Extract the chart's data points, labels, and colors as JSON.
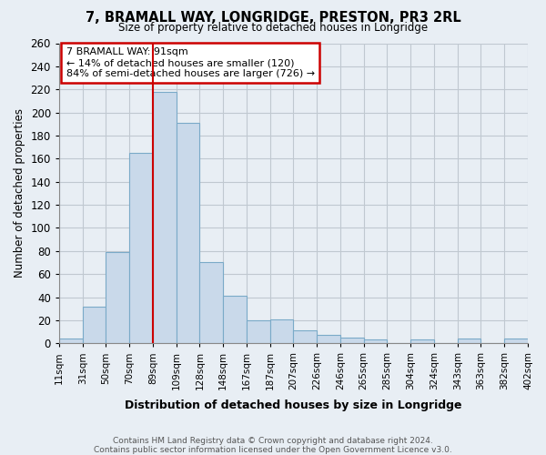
{
  "title": "7, BRAMALL WAY, LONGRIDGE, PRESTON, PR3 2RL",
  "subtitle": "Size of property relative to detached houses in Longridge",
  "xlabel": "Distribution of detached houses by size in Longridge",
  "ylabel": "Number of detached properties",
  "bin_labels": [
    "11sqm",
    "31sqm",
    "50sqm",
    "70sqm",
    "89sqm",
    "109sqm",
    "128sqm",
    "148sqm",
    "167sqm",
    "187sqm",
    "207sqm",
    "226sqm",
    "246sqm",
    "265sqm",
    "285sqm",
    "304sqm",
    "324sqm",
    "343sqm",
    "363sqm",
    "382sqm",
    "402sqm"
  ],
  "bin_values": [
    4,
    32,
    79,
    165,
    218,
    191,
    70,
    41,
    20,
    21,
    11,
    7,
    5,
    3,
    0,
    3,
    0,
    4,
    0,
    4
  ],
  "bar_color": "#c9d9ea",
  "bar_edge_color": "#7aaac8",
  "vline_x_index": 4,
  "vline_color": "#cc0000",
  "annotation_title": "7 BRAMALL WAY: 91sqm",
  "annotation_line1": "← 14% of detached houses are smaller (120)",
  "annotation_line2": "84% of semi-detached houses are larger (726) →",
  "annotation_box_facecolor": "#ffffff",
  "annotation_box_edgecolor": "#cc0000",
  "footnote1": "Contains HM Land Registry data © Crown copyright and database right 2024.",
  "footnote2": "Contains public sector information licensed under the Open Government Licence v3.0.",
  "ylim": [
    0,
    260
  ],
  "yticks": [
    0,
    20,
    40,
    60,
    80,
    100,
    120,
    140,
    160,
    180,
    200,
    220,
    240,
    260
  ],
  "bg_color": "#e8eef4",
  "plot_bg_color": "#e8eef4",
  "grid_color": "#c0c8d0"
}
